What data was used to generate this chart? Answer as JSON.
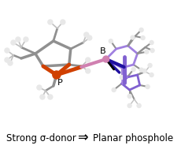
{
  "background_color": "#ffffff",
  "bottom_text_left": "Strong σ-donor",
  "bottom_text_right": "Planar phosphole",
  "arrow_symbol": "⇒",
  "text_fontsize": 8.5,
  "fig_width": 2.49,
  "fig_height": 1.89,
  "dpi": 100,
  "label_B": "B",
  "label_P": "P",
  "gray": "#909090",
  "gray_light": "#c0c0c0",
  "gray_dark": "#606060",
  "white_atom": "#e8e8e8",
  "orange": "#D04000",
  "pink": "#D080B0",
  "purple_dark": "#2010A0",
  "purple": "#8060D0",
  "purple_light": "#A080E0",
  "black": "#000000"
}
